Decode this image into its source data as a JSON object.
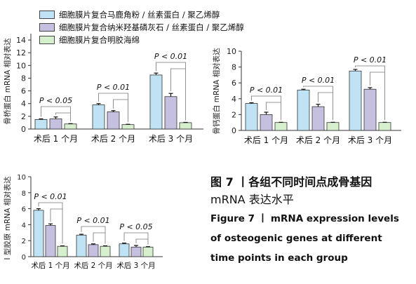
{
  "legend": [
    {
      "label": "细胞膜片复合马鹿角粉 / 丝素蛋白 / 聚乙烯醇",
      "color": "#bfe3f5"
    },
    {
      "label": "细胞膜片复合纳米羟基磷灰石 / 丝素蛋白 / 聚乙烯醇",
      "color": "#c5c0e0"
    },
    {
      "label": "细胞膜片复合明胶海绵",
      "color": "#d6efcd"
    }
  ],
  "caption": {
    "cn_title": "图 7 丨各组不同时间点成骨基因",
    "cn_title_2": "mRNA 表达水平",
    "en_line1": "Figure 7 丨 mRNA expression levels",
    "en_line2": "of osteogenic genes at different",
    "en_line3": "time points in each group"
  },
  "chart_data": [
    {
      "type": "bar",
      "ylabel": "骨桥蛋白 mRNA 相对表达",
      "categories": [
        "术后 1 个月",
        "术后 2 个月",
        "术后 3 个月"
      ],
      "ylim": [
        0,
        15
      ],
      "yticks": [
        0,
        2,
        4,
        6,
        8,
        10,
        12,
        14
      ],
      "series": [
        {
          "values": [
            1.5,
            3.8,
            8.5
          ],
          "errors": [
            0.1,
            0.2,
            0.3
          ]
        },
        {
          "values": [
            1.6,
            2.7,
            5.1
          ],
          "errors": [
            0.3,
            0.2,
            0.5
          ]
        },
        {
          "values": [
            0.8,
            0.7,
            1.0
          ],
          "errors": [
            0.05,
            0.05,
            0.05
          ]
        }
      ],
      "annotations": [
        "P < 0.05",
        "P < 0.01",
        "P < 0.01"
      ]
    },
    {
      "type": "bar",
      "ylabel": "骨钙蛋白 mRNA 相对表达",
      "categories": [
        "术后 1 个月",
        "术后 2 个月",
        "术后 3 个月"
      ],
      "ylim": [
        0,
        10
      ],
      "yticks": [
        0,
        2,
        4,
        6,
        8,
        10
      ],
      "series": [
        {
          "values": [
            3.4,
            5.1,
            7.5
          ],
          "errors": [
            0.1,
            0.1,
            0.2
          ]
        },
        {
          "values": [
            2.0,
            3.0,
            5.2
          ],
          "errors": [
            0.3,
            0.3,
            0.2
          ]
        },
        {
          "values": [
            1.0,
            1.0,
            1.0
          ],
          "errors": [
            0.03,
            0.03,
            0.03
          ]
        }
      ],
      "annotations": [
        "P < 0.01",
        "P < 0.01",
        "P < 0.01"
      ]
    },
    {
      "type": "bar",
      "ylabel": "I 型胶原 mRNA 相对表达",
      "categories": [
        "术后 1 个月",
        "术后 2 个月",
        "术后 3 个月"
      ],
      "ylim": [
        0,
        10
      ],
      "yticks": [
        0,
        2,
        4,
        6,
        8,
        10
      ],
      "series": [
        {
          "values": [
            5.8,
            2.7,
            1.6
          ],
          "errors": [
            0.2,
            0.1,
            0.1
          ]
        },
        {
          "values": [
            3.9,
            1.5,
            1.2
          ],
          "errors": [
            0.2,
            0.1,
            0.2
          ]
        },
        {
          "values": [
            1.3,
            1.3,
            1.2
          ],
          "errors": [
            0.05,
            0.05,
            0.05
          ]
        }
      ],
      "annotations": [
        "P < 0.01",
        "P < 0.01",
        "P < 0.05"
      ]
    }
  ]
}
